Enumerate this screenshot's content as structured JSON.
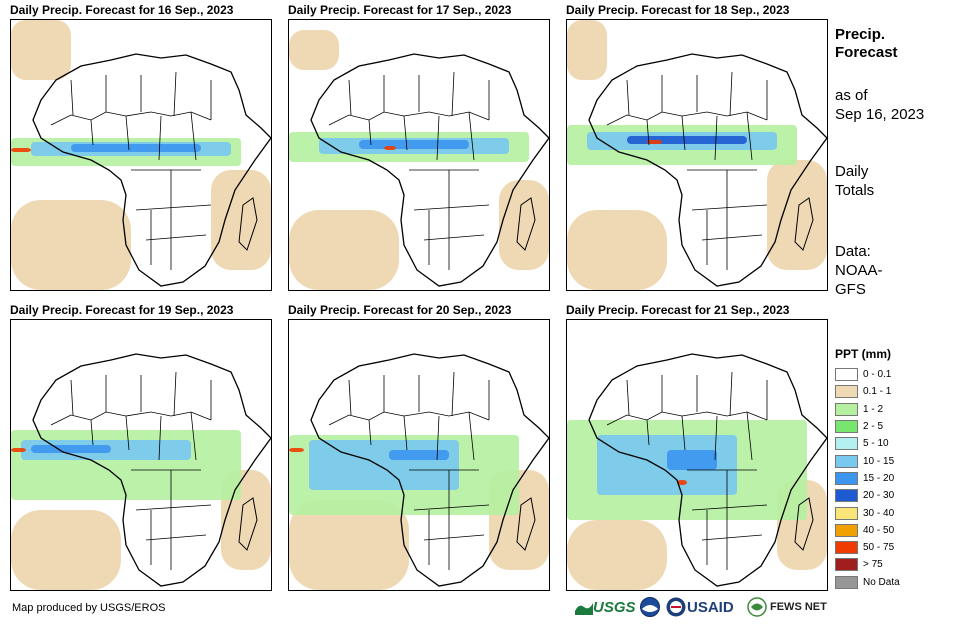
{
  "panels": [
    {
      "title": "Daily Precip. Forecast for 16 Sep., 2023"
    },
    {
      "title": "Daily Precip. Forecast for 17 Sep., 2023"
    },
    {
      "title": "Daily Precip. Forecast for 18 Sep., 2023"
    },
    {
      "title": "Daily Precip. Forecast for 19 Sep., 2023"
    },
    {
      "title": "Daily Precip. Forecast for 20 Sep., 2023"
    },
    {
      "title": "Daily Precip. Forecast for 21 Sep., 2023"
    }
  ],
  "sidebar": {
    "title_line1": "Precip.",
    "title_line2": "Forecast",
    "asof_line1": "as of",
    "asof_line2": "Sep 16, 2023",
    "totals_line1": "Daily",
    "totals_line2": "Totals",
    "data_line1": "Data:",
    "data_line2": "NOAA-",
    "data_line3": "GFS"
  },
  "legend": {
    "title": "PPT (mm)",
    "items": [
      {
        "label": "0 - 0.1",
        "color": "#ffffff"
      },
      {
        "label": "0.1 - 1",
        "color": "#efd9b4"
      },
      {
        "label": "1 - 2",
        "color": "#b4f0a0"
      },
      {
        "label": "2 - 5",
        "color": "#78e66e"
      },
      {
        "label": "5 - 10",
        "color": "#b4f0f0"
      },
      {
        "label": "10 - 15",
        "color": "#78c8f0"
      },
      {
        "label": "15 - 20",
        "color": "#3c96f0"
      },
      {
        "label": "20 - 30",
        "color": "#1e5ad2"
      },
      {
        "label": "30 - 40",
        "color": "#fae678"
      },
      {
        "label": "40 - 50",
        "color": "#f0a000"
      },
      {
        "label": "50 - 75",
        "color": "#f03c00"
      },
      {
        "label": "> 75",
        "color": "#a01e1e"
      },
      {
        "label": "No Data",
        "color": "#969696"
      }
    ]
  },
  "credit": "Map produced by USGS/EROS",
  "logos": {
    "usgs": "USGS",
    "usaid": "USAID",
    "fews": "FEWS NET"
  },
  "colors": {
    "ocean_dry": "#efd9b4",
    "light_green": "#b4f0a0",
    "green": "#78e66e",
    "blue1": "#78c8f0",
    "blue2": "#3c96f0",
    "blue3": "#1e5ad2",
    "red": "#f03c00"
  }
}
